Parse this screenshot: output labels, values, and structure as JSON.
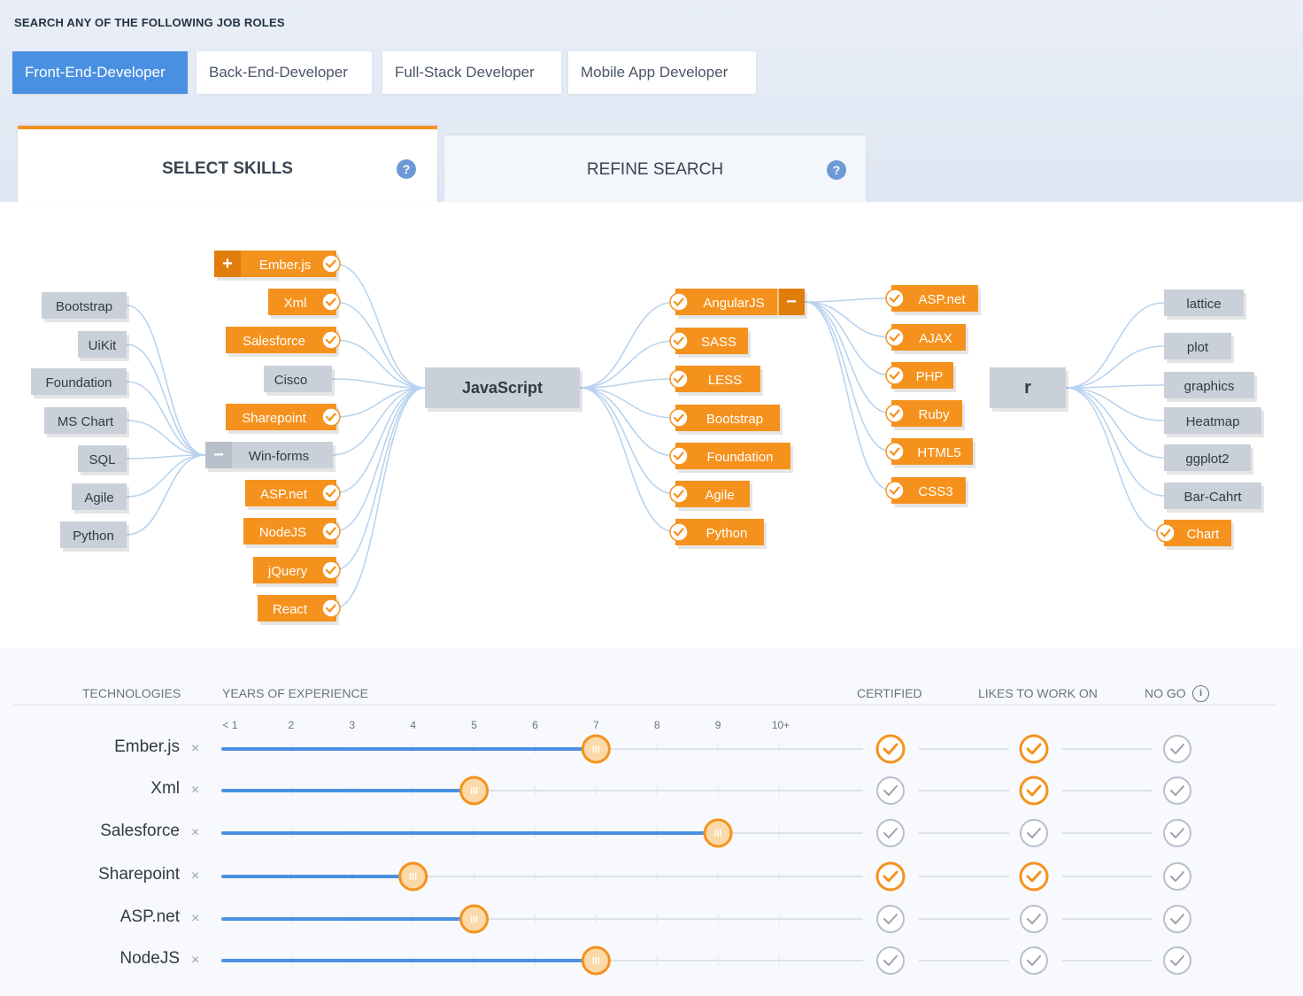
{
  "header": {
    "title": "SEARCH ANY OF THE FOLLOWING JOB ROLES"
  },
  "roles": [
    {
      "label": "Front-End-Developer",
      "active": true
    },
    {
      "label": "Back-End-Developer",
      "active": false
    },
    {
      "label": "Full-Stack Developer",
      "active": false
    },
    {
      "label": "Mobile App Developer",
      "active": false
    }
  ],
  "tabs": [
    {
      "label": "SELECT SKILLS",
      "active": true,
      "icon": "help-icon"
    },
    {
      "label": "REFINE SEARCH",
      "active": false,
      "icon": "help-icon"
    }
  ],
  "colors": {
    "accent": "#f5921e",
    "blue": "#4a90e2",
    "gray_node": "#c9d0da",
    "link": "#b9d3ee"
  },
  "mindmap": {
    "center": "JavaScript",
    "left_gray": [
      "Bootstrap",
      "UiKit",
      "Foundation",
      "MS Chart",
      "SQL",
      "Agile",
      "Python"
    ],
    "left_mid": [
      {
        "label": "Ember.js",
        "selected": true,
        "toggle": "+"
      },
      {
        "label": "Xml",
        "selected": true
      },
      {
        "label": "Salesforce",
        "selected": true
      },
      {
        "label": "Cisco",
        "selected": false
      },
      {
        "label": "Sharepoint",
        "selected": true
      },
      {
        "label": "Win-forms",
        "selected": false,
        "toggle": "−"
      },
      {
        "label": "ASP.net",
        "selected": true
      },
      {
        "label": "NodeJS",
        "selected": true
      },
      {
        "label": "jQuery",
        "selected": true
      },
      {
        "label": "React",
        "selected": true
      }
    ],
    "right_mid": [
      {
        "label": "AngularJS",
        "toggle": "−"
      },
      {
        "label": "SASS"
      },
      {
        "label": "LESS"
      },
      {
        "label": "Bootstrap"
      },
      {
        "label": "Foundation"
      },
      {
        "label": "Agile"
      },
      {
        "label": "Python"
      }
    ],
    "angular_children": [
      "ASP.net",
      "AJAX",
      "PHP",
      "Ruby",
      "HTML5",
      "CSS3"
    ],
    "r_node": "r",
    "r_children": [
      {
        "label": "lattice",
        "selected": false
      },
      {
        "label": "plot",
        "selected": false
      },
      {
        "label": "graphics",
        "selected": false
      },
      {
        "label": "Heatmap",
        "selected": false
      },
      {
        "label": "ggplot2",
        "selected": false
      },
      {
        "label": "Bar-Cahrt",
        "selected": false
      },
      {
        "label": "Chart",
        "selected": true
      }
    ]
  },
  "table": {
    "headers": {
      "technologies": "TECHNOLOGIES",
      "years": "YEARS OF EXPERIENCE",
      "certified": "CERTIFIED",
      "likes": "LIKES TO WORK ON",
      "nogo": "NO GO"
    },
    "year_ticks": [
      "< 1",
      "2",
      "3",
      "4",
      "5",
      "6",
      "7",
      "8",
      "9",
      "10+"
    ],
    "rows": [
      {
        "tech": "Ember.js",
        "years": 7,
        "certified": true,
        "likes": true,
        "nogo": false
      },
      {
        "tech": "Xml",
        "years": 5,
        "certified": false,
        "likes": true,
        "nogo": false
      },
      {
        "tech": "Salesforce",
        "years": 9,
        "certified": false,
        "likes": false,
        "nogo": false
      },
      {
        "tech": "Sharepoint",
        "years": 4,
        "certified": true,
        "likes": true,
        "nogo": false
      },
      {
        "tech": "ASP.net",
        "years": 5,
        "certified": false,
        "likes": false,
        "nogo": false
      },
      {
        "tech": "NodeJS",
        "years": 7,
        "certified": false,
        "likes": false,
        "nogo": false
      }
    ],
    "remove_symbol": "×"
  }
}
